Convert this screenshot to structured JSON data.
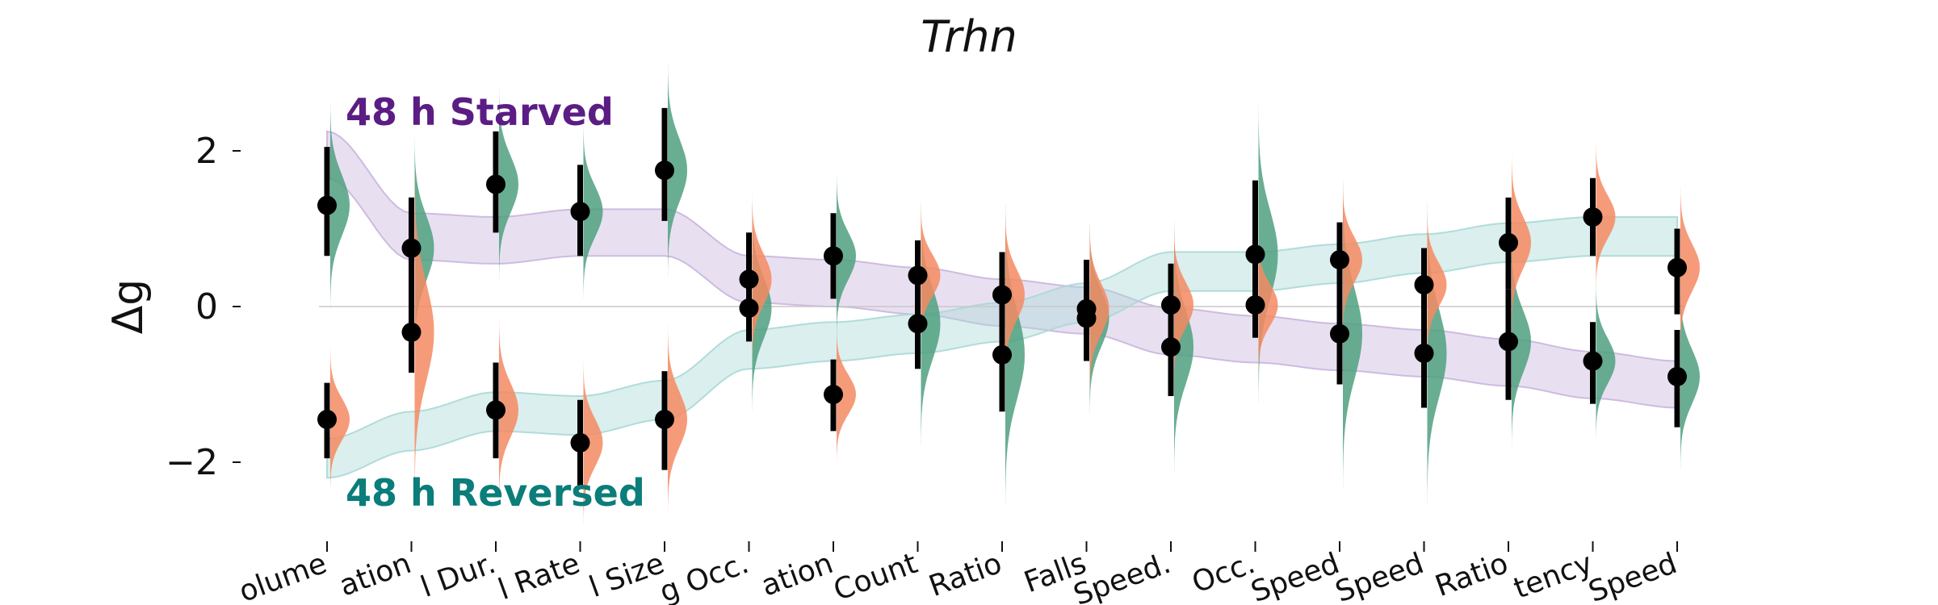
{
  "chart_data": {
    "type": "scatter",
    "title": "Trhn",
    "ylabel": "Δg",
    "xlabel": "",
    "ylim": [
      -2.9,
      3.0
    ],
    "yticks": [
      -2,
      0,
      2
    ],
    "ytick_labels": [
      "−2",
      "0",
      "2"
    ],
    "grid": false,
    "zero_line": true,
    "categories": [
      "olume",
      "ation",
      "l Dur.",
      "l Rate",
      "l Size",
      "g Occ.",
      "ation",
      "Count",
      "Ratio",
      "Falls",
      "Speed.",
      "Occ.",
      "Speed",
      "Speed",
      "Ratio",
      "tency",
      "Speed"
    ],
    "annotations": [
      {
        "text": "48 h Starved",
        "color": "#5b1d84"
      },
      {
        "text": "48 h Reversed",
        "color": "#0b7d7a"
      }
    ],
    "colors": {
      "green": "#4fa07f",
      "orange": "#f58a62",
      "band_purple": "#c9b6dd",
      "band_teal": "#a9d9d6"
    },
    "series": [
      {
        "color": "green",
        "values": [
          1.3,
          0.75,
          1.57,
          1.22,
          1.75,
          -0.02,
          0.65,
          -0.22,
          -0.62,
          -0.15,
          -0.52,
          0.67,
          -0.35,
          -0.6,
          -0.45,
          -0.7,
          -0.9
        ],
        "lower": [
          0.65,
          -0.1,
          0.95,
          0.65,
          1.1,
          -0.45,
          0.1,
          -0.8,
          -1.35,
          -0.7,
          -1.15,
          -0.4,
          -1.0,
          -1.3,
          -1.2,
          -1.25,
          -1.55
        ],
        "upper": [
          2.05,
          1.4,
          2.25,
          1.82,
          2.55,
          0.95,
          1.2,
          0.85,
          0.7,
          0.6,
          0.55,
          1.62,
          1.08,
          0.75,
          0.22,
          -0.2,
          -0.3
        ]
      },
      {
        "color": "orange",
        "values": [
          -1.45,
          -0.33,
          -1.33,
          -1.75,
          -1.45,
          0.35,
          -1.13,
          0.4,
          0.15,
          -0.03,
          0.02,
          0.02,
          0.6,
          0.28,
          0.82,
          1.15,
          0.5
        ],
        "lower": [
          -1.95,
          -0.85,
          -1.95,
          -2.3,
          -2.1,
          -0.2,
          -1.6,
          -0.1,
          -0.45,
          -0.55,
          -0.5,
          -0.4,
          0.05,
          -0.25,
          0.22,
          0.65,
          -0.1
        ],
        "upper": [
          -0.98,
          1.4,
          -0.72,
          -1.2,
          -0.83,
          0.95,
          -0.68,
          0.85,
          0.7,
          0.6,
          0.55,
          0.55,
          1.08,
          0.75,
          1.4,
          1.65,
          1.0
        ]
      }
    ],
    "bands": [
      {
        "color": "band_purple",
        "center": [
          1.95,
          0.9,
          0.85,
          0.95,
          0.95,
          0.35,
          0.3,
          0.2,
          0.05,
          -0.05,
          -0.32,
          -0.42,
          -0.52,
          -0.6,
          -0.72,
          -0.88,
          -1.0
        ],
        "halfwidth": 0.3
      },
      {
        "color": "band_teal",
        "center": [
          -1.95,
          -1.6,
          -1.35,
          -1.4,
          -1.2,
          -0.55,
          -0.45,
          -0.35,
          -0.2,
          0.05,
          0.45,
          0.45,
          0.55,
          0.68,
          0.82,
          0.9,
          0.9
        ],
        "halfwidth": 0.25
      }
    ]
  }
}
